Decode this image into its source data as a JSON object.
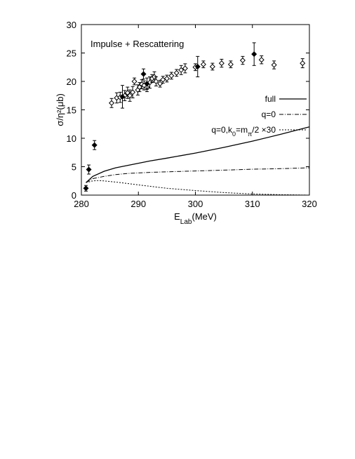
{
  "chart_data": {
    "type": "scatter",
    "annotation": "Impulse + Rescattering",
    "xlabel_main": "E",
    "xlabel_sub": "Lab",
    "xlabel_unit": "(MeV)",
    "ylabel": "σ/η²(μb)",
    "xlim": [
      280,
      320
    ],
    "ylim": [
      0,
      30
    ],
    "xticks": [
      280,
      290,
      300,
      310,
      320
    ],
    "yticks": [
      0,
      5,
      10,
      15,
      20,
      25,
      30
    ],
    "grid": false,
    "legend_position": "right, upper-middle",
    "series": [
      {
        "name": "full",
        "kind": "line",
        "style": "solid",
        "x": [
          280.8,
          282,
          284,
          286,
          288,
          290,
          292,
          295,
          300,
          305,
          310,
          315,
          320
        ],
        "y": [
          2.2,
          3.3,
          4.2,
          4.8,
          5.2,
          5.6,
          6.0,
          6.5,
          7.4,
          8.4,
          9.5,
          10.7,
          12.0
        ]
      },
      {
        "name": "q=0",
        "kind": "line",
        "style": "dash-dot",
        "x": [
          280.8,
          282,
          284,
          286,
          288,
          290,
          292,
          295,
          300,
          305,
          310,
          315,
          320
        ],
        "y": [
          2.2,
          2.9,
          3.3,
          3.6,
          3.8,
          3.9,
          4.0,
          4.1,
          4.25,
          4.4,
          4.55,
          4.65,
          4.8
        ]
      },
      {
        "name": "q=0,k",
        "name_sub1": "0",
        "name_mid": "=m",
        "name_sub2": "π",
        "name_tail": "/2 ×30",
        "kind": "line",
        "style": "dotted",
        "x": [
          280.8,
          282,
          283,
          284,
          286,
          288,
          290,
          292,
          295,
          300,
          305,
          310,
          315,
          320
        ],
        "y": [
          2.2,
          2.5,
          2.55,
          2.5,
          2.3,
          2.05,
          1.8,
          1.55,
          1.2,
          0.8,
          0.45,
          0.2,
          0.08,
          0.0
        ]
      },
      {
        "kind": "points",
        "marker": "open-diamond",
        "x": [
          285.3,
          286.2,
          286.8,
          287.6,
          288.1,
          288.5,
          289.0,
          289.3,
          289.9,
          290.2,
          290.6,
          291.0,
          291.5,
          292.0,
          292.4,
          292.8,
          293.1,
          293.8,
          294.3,
          295.0,
          295.8,
          296.7,
          297.5,
          298.2,
          300.0,
          301.4,
          303.0,
          304.6,
          306.2,
          308.3,
          311.6,
          313.8,
          318.8
        ],
        "y": [
          16.2,
          17.1,
          17.2,
          17.5,
          18.0,
          17.5,
          18.1,
          20.0,
          18.5,
          19.0,
          19.5,
          19.3,
          19.0,
          19.8,
          20.5,
          20.8,
          20.0,
          19.6,
          20.3,
          20.5,
          21.0,
          21.5,
          22.0,
          22.3,
          22.5,
          23.0,
          22.6,
          23.2,
          23.0,
          23.7,
          23.8,
          22.9,
          23.2
        ],
        "err": [
          0.8,
          0.9,
          0.9,
          0.9,
          1.0,
          1.0,
          1.0,
          0.6,
          0.9,
          0.8,
          0.8,
          0.8,
          0.8,
          1.0,
          0.7,
          0.9,
          0.8,
          0.6,
          0.6,
          0.6,
          0.6,
          0.6,
          0.8,
          0.8,
          0.6,
          0.6,
          0.6,
          0.7,
          0.6,
          0.7,
          0.7,
          0.7,
          0.8
        ]
      },
      {
        "kind": "points",
        "marker": "filled-diamond",
        "x": [
          280.8,
          281.3,
          282.3,
          287.2,
          290.9,
          291.5,
          300.4,
          310.3
        ],
        "y": [
          1.2,
          4.5,
          8.8,
          17.3,
          21.3,
          19.6,
          22.6,
          24.8
        ],
        "err": [
          0.5,
          0.8,
          0.8,
          2.0,
          0.9,
          1.0,
          1.8,
          2.0
        ]
      }
    ]
  }
}
